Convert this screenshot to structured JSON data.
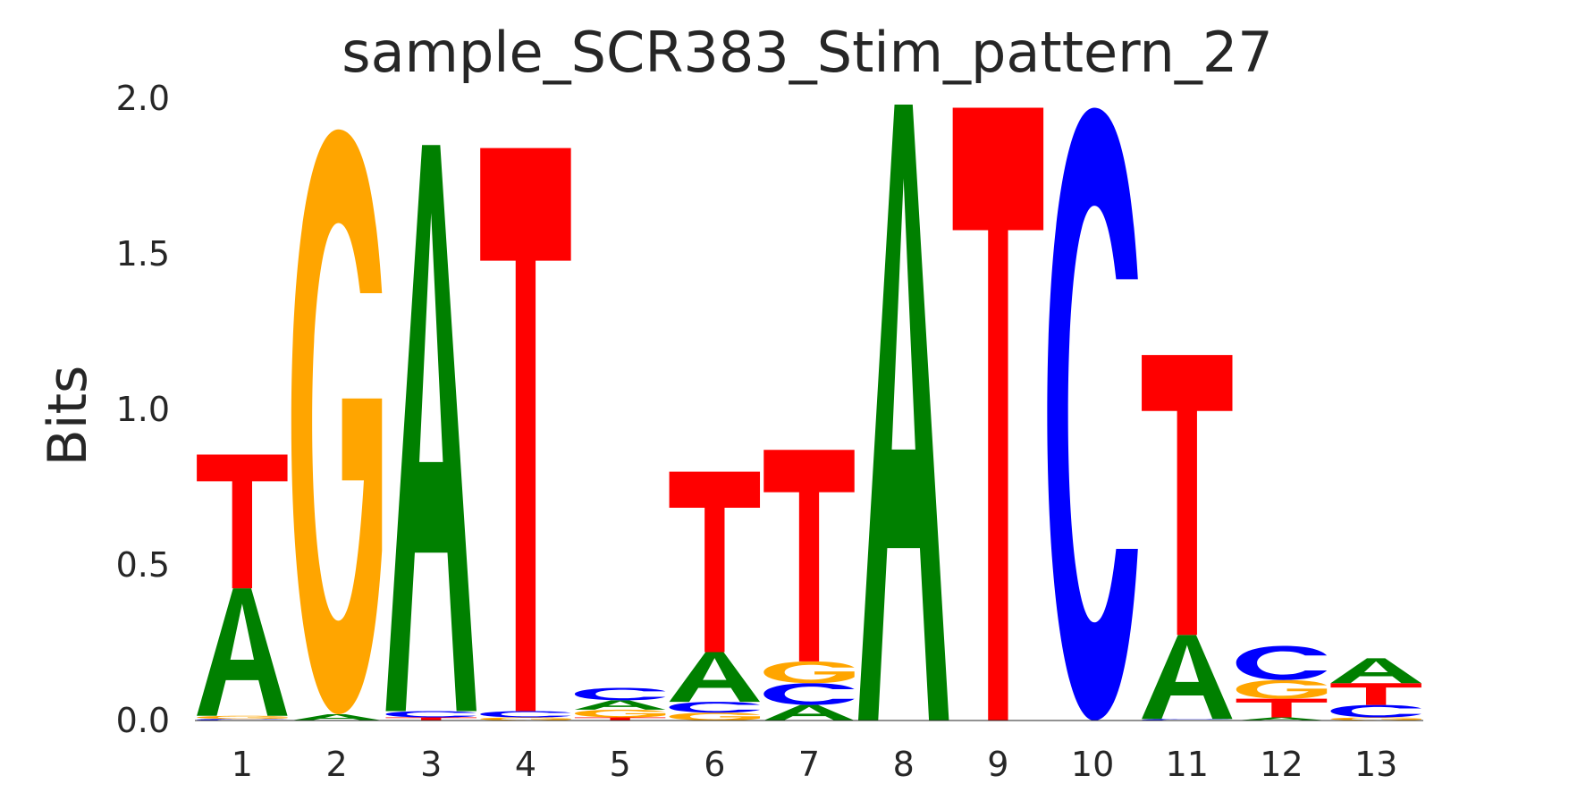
{
  "colors": {
    "A": "#008000",
    "C": "#0000ff",
    "G": "#ffa500",
    "T": "#ff0000",
    "text": "#262626"
  },
  "chart_data": {
    "type": "sequence_logo",
    "title": "sample_SCR383_Stim_pattern_27",
    "xlabel": "",
    "ylabel": "Bits",
    "ylim": [
      0,
      2.0
    ],
    "yticks": [
      "0.0",
      "0.5",
      "1.0",
      "1.5",
      "2.0"
    ],
    "grid": false,
    "categories": [
      "1",
      "2",
      "3",
      "4",
      "5",
      "6",
      "7",
      "8",
      "9",
      "10",
      "11",
      "12",
      "13"
    ],
    "positions": [
      {
        "pos": "1",
        "letters": [
          {
            "l": "C",
            "h": 0.005
          },
          {
            "l": "G",
            "h": 0.01
          },
          {
            "l": "A",
            "h": 0.41
          },
          {
            "l": "T",
            "h": 0.43
          }
        ]
      },
      {
        "pos": "2",
        "letters": [
          {
            "l": "A",
            "h": 0.02
          },
          {
            "l": "G",
            "h": 1.88
          }
        ]
      },
      {
        "pos": "3",
        "letters": [
          {
            "l": "T",
            "h": 0.01
          },
          {
            "l": "C",
            "h": 0.02
          },
          {
            "l": "A",
            "h": 1.82
          }
        ]
      },
      {
        "pos": "4",
        "letters": [
          {
            "l": "G",
            "h": 0.01
          },
          {
            "l": "C",
            "h": 0.02
          },
          {
            "l": "T",
            "h": 1.81
          }
        ]
      },
      {
        "pos": "5",
        "letters": [
          {
            "l": "T",
            "h": 0.01
          },
          {
            "l": "G",
            "h": 0.025
          },
          {
            "l": "A",
            "h": 0.03
          },
          {
            "l": "C",
            "h": 0.04
          }
        ]
      },
      {
        "pos": "6",
        "letters": [
          {
            "l": "G",
            "h": 0.025
          },
          {
            "l": "C",
            "h": 0.035
          },
          {
            "l": "A",
            "h": 0.16
          },
          {
            "l": "T",
            "h": 0.58
          }
        ]
      },
      {
        "pos": "7",
        "letters": [
          {
            "l": "A",
            "h": 0.05
          },
          {
            "l": "C",
            "h": 0.07
          },
          {
            "l": "G",
            "h": 0.07
          },
          {
            "l": "T",
            "h": 0.68
          }
        ]
      },
      {
        "pos": "8",
        "letters": [
          {
            "l": "A",
            "h": 1.98
          }
        ]
      },
      {
        "pos": "9",
        "letters": [
          {
            "l": "T",
            "h": 1.97
          }
        ]
      },
      {
        "pos": "10",
        "letters": [
          {
            "l": "C",
            "h": 1.97
          }
        ]
      },
      {
        "pos": "11",
        "letters": [
          {
            "l": "C",
            "h": 0.005
          },
          {
            "l": "A",
            "h": 0.27
          },
          {
            "l": "T",
            "h": 0.9
          }
        ]
      },
      {
        "pos": "12",
        "letters": [
          {
            "l": "A",
            "h": 0.01
          },
          {
            "l": "T",
            "h": 0.06
          },
          {
            "l": "G",
            "h": 0.06
          },
          {
            "l": "C",
            "h": 0.11
          }
        ]
      },
      {
        "pos": "13",
        "letters": [
          {
            "l": "G",
            "h": 0.01
          },
          {
            "l": "C",
            "h": 0.04
          },
          {
            "l": "T",
            "h": 0.07
          },
          {
            "l": "A",
            "h": 0.08
          }
        ]
      }
    ]
  }
}
